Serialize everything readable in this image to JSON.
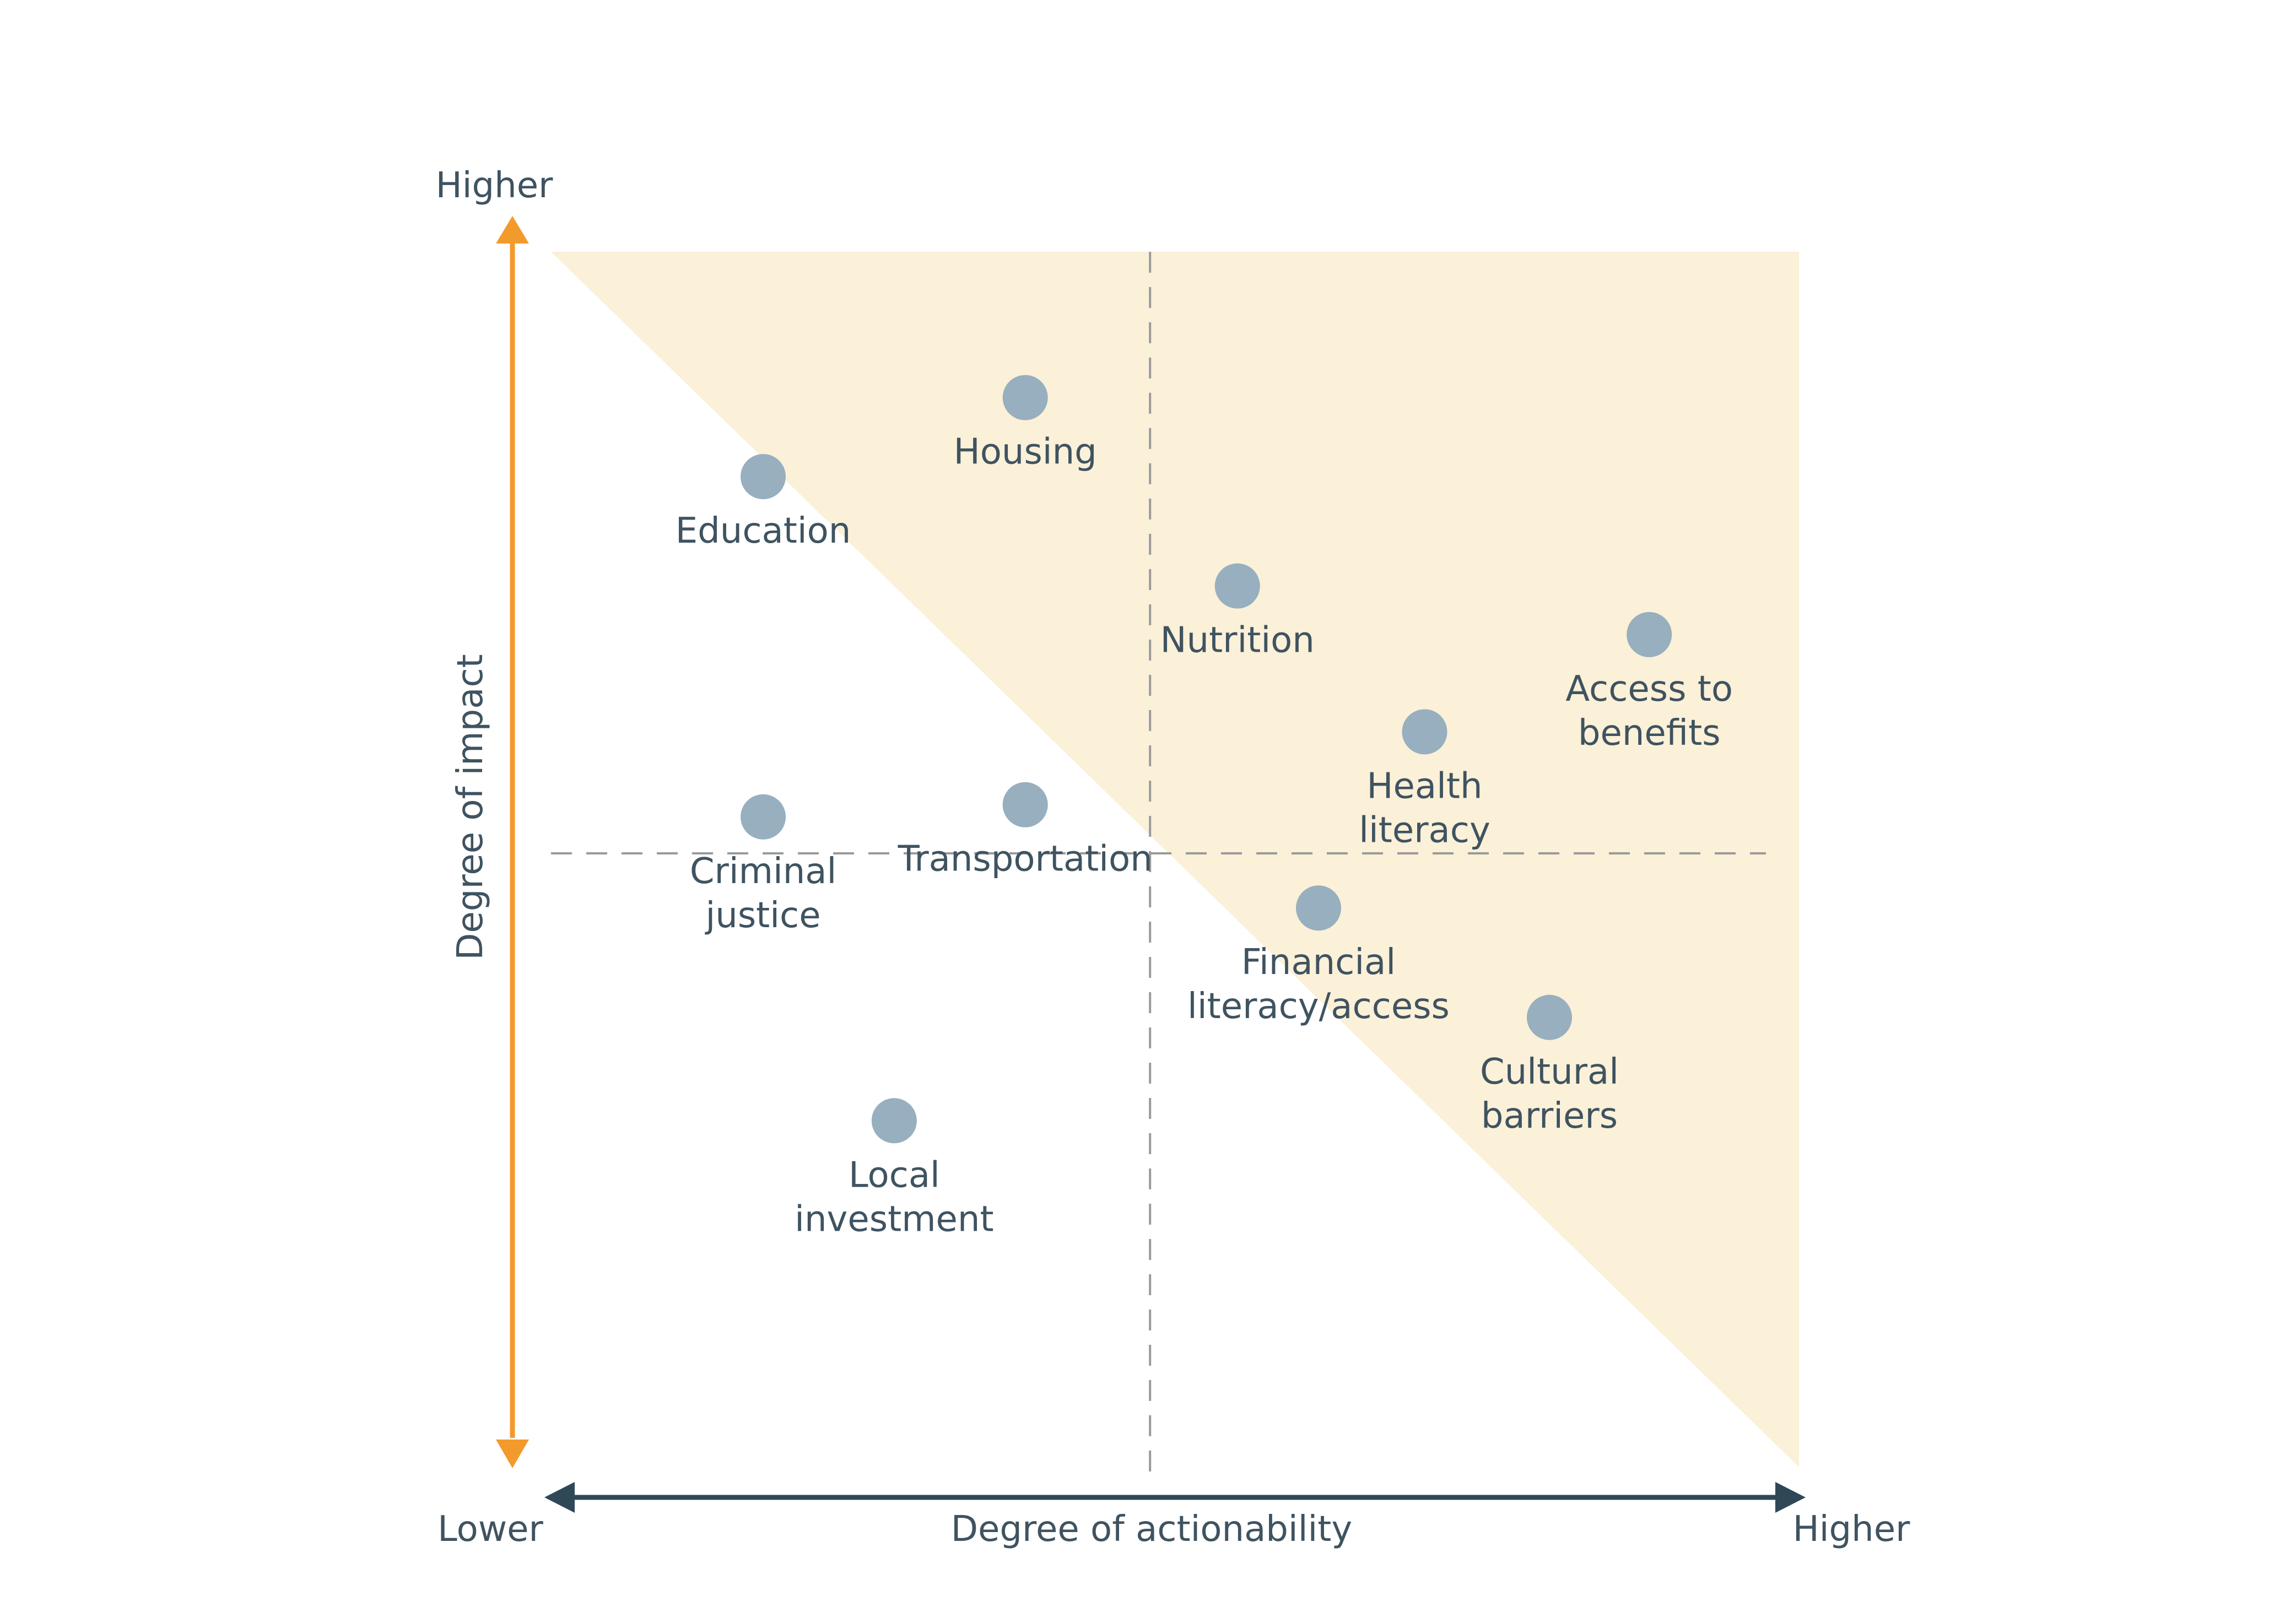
{
  "chart_data": {
    "type": "scatter",
    "title": "",
    "xlabel": "Degree of actionability",
    "ylabel": "Degree of impact",
    "x_ticks": {
      "low": "Lower",
      "high": "Higher"
    },
    "y_ticks": {
      "high": "Higher"
    },
    "xlim": [
      0,
      10
    ],
    "ylim": [
      0,
      10
    ],
    "grid": false,
    "midlines": {
      "x": 4.8,
      "y": 5.05
    },
    "highlight_region": "upper-right triangle (above diagonal from top-left to bottom-right)",
    "colors": {
      "points": "#97afbf",
      "highlight": "#fbf0d8",
      "y_axis": "#f39a2c",
      "x_axis": "#2f4858",
      "midline": "#9a9a9a",
      "text": "#3f5360"
    },
    "points": [
      {
        "name": "Housing",
        "label_lines": [
          "Housing"
        ],
        "x": 3.8,
        "y": 8.8
      },
      {
        "name": "Education",
        "label_lines": [
          "Education"
        ],
        "x": 1.7,
        "y": 8.15
      },
      {
        "name": "Nutrition",
        "label_lines": [
          "Nutrition"
        ],
        "x": 5.5,
        "y": 7.25
      },
      {
        "name": "Access to benefits",
        "label_lines": [
          "Access to",
          "benefits"
        ],
        "x": 8.8,
        "y": 6.85
      },
      {
        "name": "Health literacy",
        "label_lines": [
          "Health",
          "literacy"
        ],
        "x": 7.0,
        "y": 6.05
      },
      {
        "name": "Criminal justice",
        "label_lines": [
          "Criminal",
          "justice"
        ],
        "x": 1.7,
        "y": 5.35
      },
      {
        "name": "Transportation",
        "label_lines": [
          "Transportation"
        ],
        "x": 3.8,
        "y": 5.45
      },
      {
        "name": "Financial literacy/access",
        "label_lines": [
          "Financial",
          "literacy/access"
        ],
        "x": 6.15,
        "y": 4.6
      },
      {
        "name": "Cultural barriers",
        "label_lines": [
          "Cultural",
          "barriers"
        ],
        "x": 8.0,
        "y": 3.7
      },
      {
        "name": "Local investment",
        "label_lines": [
          "Local",
          "investment"
        ],
        "x": 2.75,
        "y": 2.85
      }
    ]
  }
}
